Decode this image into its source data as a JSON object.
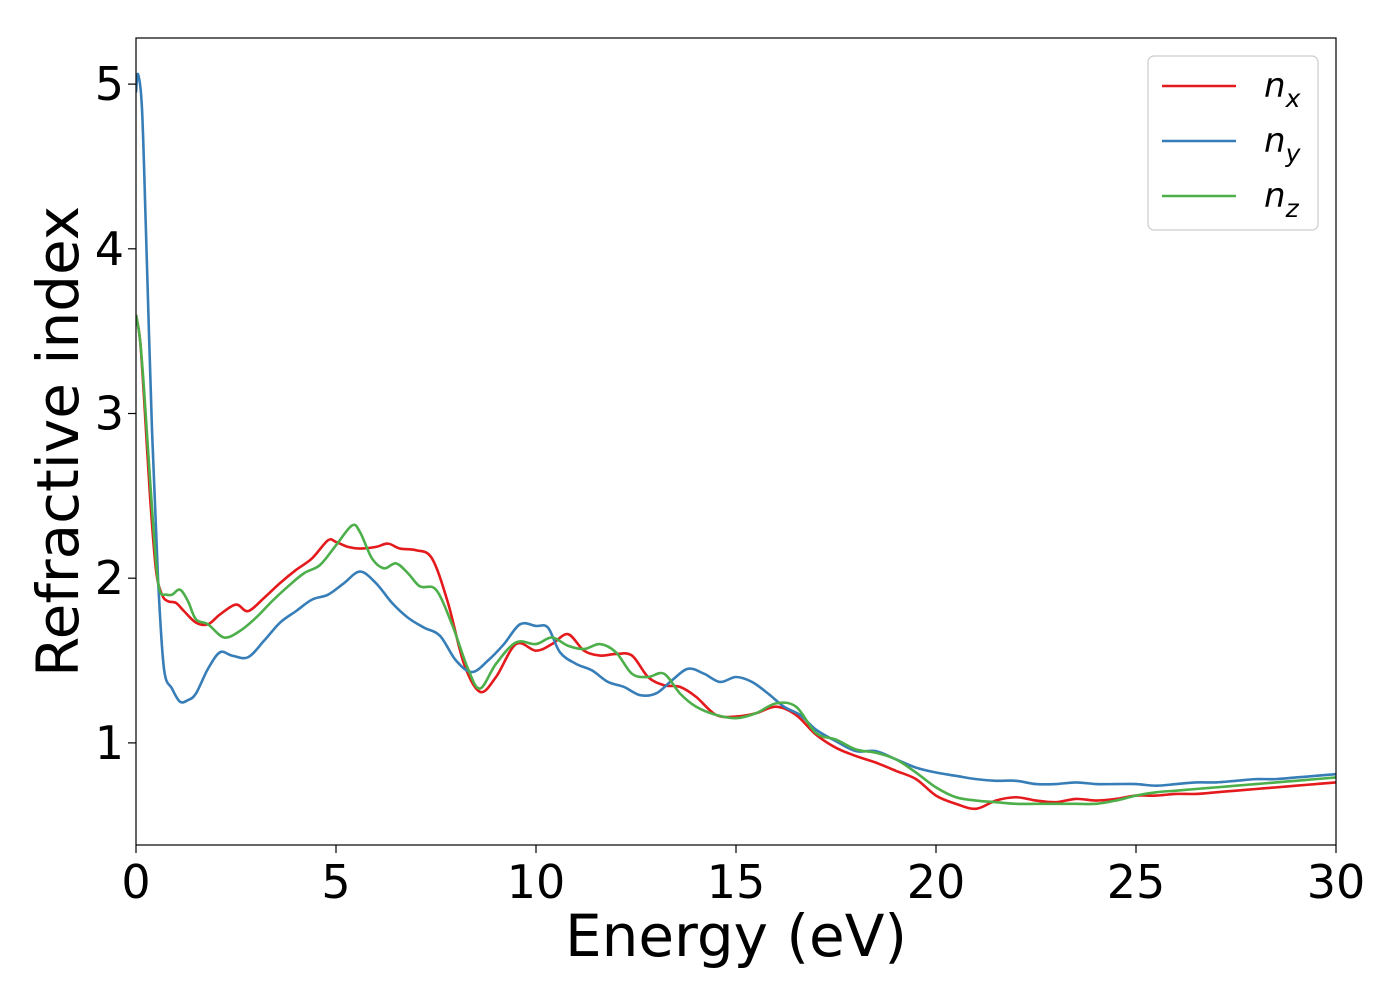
{
  "chart_data": {
    "type": "line",
    "xlabel": "Energy (eV)",
    "ylabel": "Refractive index",
    "xlim": [
      0,
      30
    ],
    "ylim": [
      0.38,
      5.28
    ],
    "xticks": [
      0,
      5,
      10,
      15,
      20,
      25,
      30
    ],
    "yticks": [
      1,
      2,
      3,
      4,
      5
    ],
    "grid": false,
    "legend_position": "top-right",
    "series": [
      {
        "name": "n",
        "subscript": "x",
        "color": "#e41a1c",
        "x": [
          0,
          0.1,
          0.2,
          0.35,
          0.5,
          0.65,
          0.8,
          1.0,
          1.2,
          1.5,
          1.8,
          2.1,
          2.5,
          2.8,
          3.2,
          3.6,
          4.0,
          4.4,
          4.8,
          5.0,
          5.3,
          5.6,
          6.0,
          6.3,
          6.6,
          7.0,
          7.4,
          7.8,
          8.2,
          8.6,
          9.0,
          9.5,
          10.0,
          10.4,
          10.8,
          11.2,
          11.6,
          12.0,
          12.4,
          12.8,
          13.2,
          13.6,
          14.0,
          14.5,
          15.0,
          15.5,
          16.0,
          16.5,
          17.0,
          17.5,
          18.0,
          18.5,
          19.0,
          19.5,
          20.0,
          20.5,
          21.0,
          21.5,
          22.0,
          22.5,
          23.0,
          23.5,
          24.0,
          24.5,
          25.0,
          25.5,
          26.0,
          26.5,
          27.0,
          27.5,
          28.0,
          28.5,
          29.0,
          29.5,
          30.0
        ],
        "y": [
          3.6,
          3.45,
          3.1,
          2.5,
          2.05,
          1.9,
          1.86,
          1.85,
          1.8,
          1.73,
          1.72,
          1.78,
          1.84,
          1.8,
          1.88,
          1.97,
          2.05,
          2.12,
          2.23,
          2.22,
          2.19,
          2.18,
          2.19,
          2.21,
          2.18,
          2.17,
          2.12,
          1.85,
          1.48,
          1.31,
          1.4,
          1.6,
          1.56,
          1.6,
          1.66,
          1.56,
          1.53,
          1.54,
          1.53,
          1.4,
          1.35,
          1.34,
          1.28,
          1.17,
          1.16,
          1.18,
          1.22,
          1.17,
          1.05,
          0.97,
          0.92,
          0.88,
          0.83,
          0.78,
          0.68,
          0.63,
          0.6,
          0.65,
          0.67,
          0.65,
          0.64,
          0.66,
          0.65,
          0.66,
          0.68,
          0.68,
          0.69,
          0.69,
          0.7,
          0.71,
          0.72,
          0.73,
          0.74,
          0.75,
          0.76
        ]
      },
      {
        "name": "n",
        "subscript": "y",
        "color": "#377eb8",
        "x": [
          0,
          0.05,
          0.15,
          0.25,
          0.4,
          0.55,
          0.7,
          0.9,
          1.1,
          1.3,
          1.5,
          1.8,
          2.1,
          2.4,
          2.8,
          3.2,
          3.6,
          4.0,
          4.4,
          4.8,
          5.2,
          5.6,
          6.0,
          6.4,
          6.8,
          7.2,
          7.6,
          8.0,
          8.4,
          8.8,
          9.2,
          9.6,
          10.0,
          10.3,
          10.6,
          11.0,
          11.4,
          11.8,
          12.2,
          12.6,
          13.0,
          13.4,
          13.8,
          14.2,
          14.6,
          15.0,
          15.4,
          15.8,
          16.2,
          16.6,
          17.0,
          17.5,
          18.0,
          18.5,
          19.0,
          19.5,
          20.0,
          20.5,
          21.0,
          21.5,
          22.0,
          22.5,
          23.0,
          23.5,
          24.0,
          24.5,
          25.0,
          25.5,
          26.0,
          26.5,
          27.0,
          27.5,
          28.0,
          28.5,
          29.0,
          29.5,
          30.0
        ],
        "y": [
          4.95,
          5.06,
          4.85,
          4.1,
          2.9,
          2.0,
          1.45,
          1.33,
          1.25,
          1.26,
          1.3,
          1.45,
          1.55,
          1.53,
          1.52,
          1.62,
          1.73,
          1.8,
          1.87,
          1.9,
          1.97,
          2.04,
          1.97,
          1.85,
          1.76,
          1.7,
          1.65,
          1.5,
          1.43,
          1.5,
          1.6,
          1.72,
          1.71,
          1.7,
          1.55,
          1.48,
          1.44,
          1.37,
          1.34,
          1.29,
          1.3,
          1.38,
          1.45,
          1.42,
          1.37,
          1.4,
          1.37,
          1.3,
          1.22,
          1.17,
          1.08,
          1.01,
          0.95,
          0.95,
          0.9,
          0.85,
          0.82,
          0.8,
          0.78,
          0.77,
          0.77,
          0.75,
          0.75,
          0.76,
          0.75,
          0.75,
          0.75,
          0.74,
          0.75,
          0.76,
          0.76,
          0.77,
          0.78,
          0.78,
          0.79,
          0.8,
          0.81
        ]
      },
      {
        "name": "n",
        "subscript": "z",
        "color": "#4daf4a",
        "x": [
          0,
          0.1,
          0.2,
          0.35,
          0.5,
          0.6,
          0.75,
          0.9,
          1.1,
          1.3,
          1.5,
          1.8,
          2.2,
          2.6,
          3.0,
          3.4,
          3.8,
          4.2,
          4.6,
          5.0,
          5.4,
          5.6,
          5.9,
          6.2,
          6.5,
          6.8,
          7.1,
          7.5,
          7.9,
          8.3,
          8.6,
          9.0,
          9.5,
          10.0,
          10.4,
          10.8,
          11.2,
          11.6,
          12.0,
          12.4,
          12.8,
          13.2,
          13.6,
          14.0,
          14.5,
          15.0,
          15.5,
          16.0,
          16.5,
          17.0,
          17.5,
          18.0,
          18.5,
          19.0,
          19.5,
          20.0,
          20.5,
          21.0,
          21.5,
          22.0,
          22.5,
          23.0,
          23.5,
          24.0,
          24.5,
          25.0,
          25.5,
          26.0,
          26.5,
          27.0,
          27.5,
          28.0,
          28.5,
          29.0,
          29.5,
          30.0
        ],
        "y": [
          3.6,
          3.45,
          3.15,
          2.6,
          2.1,
          1.92,
          1.9,
          1.9,
          1.93,
          1.86,
          1.75,
          1.72,
          1.64,
          1.68,
          1.76,
          1.86,
          1.95,
          2.03,
          2.08,
          2.2,
          2.32,
          2.28,
          2.12,
          2.06,
          2.09,
          2.03,
          1.95,
          1.93,
          1.72,
          1.45,
          1.33,
          1.48,
          1.61,
          1.6,
          1.64,
          1.59,
          1.57,
          1.6,
          1.55,
          1.42,
          1.4,
          1.42,
          1.3,
          1.22,
          1.17,
          1.15,
          1.18,
          1.24,
          1.22,
          1.06,
          1.02,
          0.96,
          0.94,
          0.9,
          0.82,
          0.73,
          0.67,
          0.65,
          0.64,
          0.63,
          0.63,
          0.63,
          0.63,
          0.63,
          0.65,
          0.68,
          0.7,
          0.71,
          0.72,
          0.73,
          0.74,
          0.75,
          0.76,
          0.77,
          0.78,
          0.79
        ]
      }
    ]
  }
}
